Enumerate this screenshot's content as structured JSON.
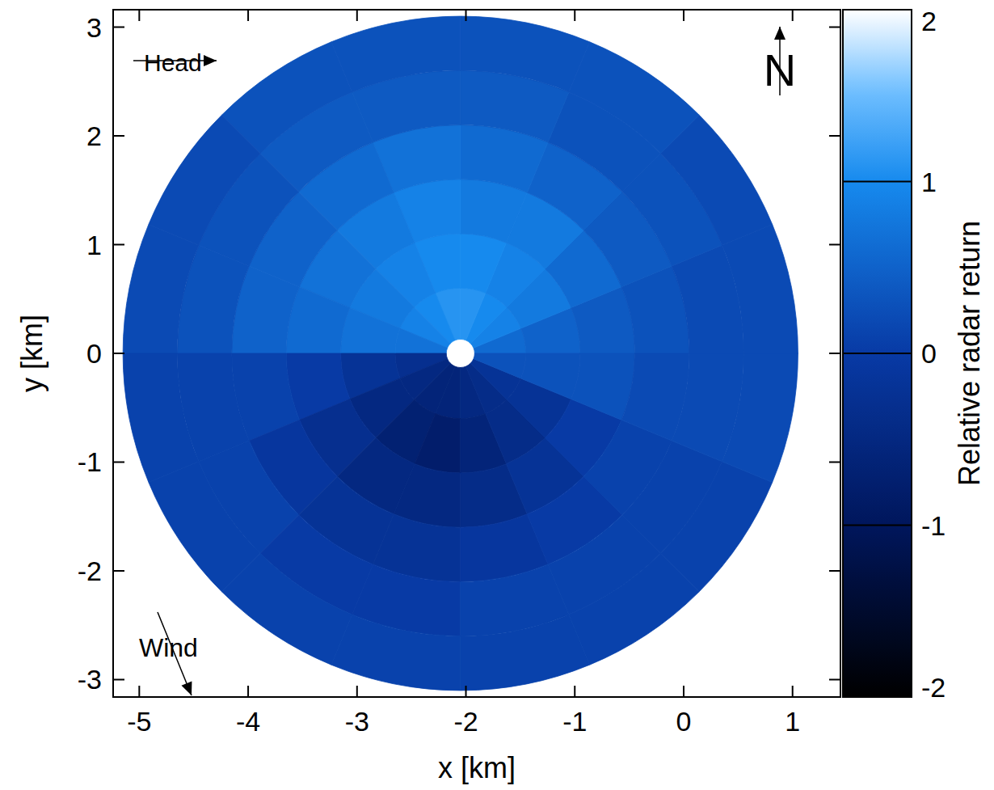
{
  "chart_data": {
    "type": "polar_heatmap",
    "xlabel": "x [km]",
    "ylabel": "y [km]",
    "xlim": [
      -5.24,
      1.44
    ],
    "ylim": [
      -3.16,
      3.16
    ],
    "xticks": [
      -5,
      -4,
      -3,
      -2,
      -1,
      0,
      1
    ],
    "yticks": [
      -3,
      -2,
      -1,
      0,
      1,
      2,
      3
    ],
    "center": [
      -2.05,
      0
    ],
    "radii": [
      0.13,
      0.6,
      1.1,
      1.6,
      2.1,
      2.6,
      3.1
    ],
    "angles": [
      0,
      22.5,
      45,
      67.5,
      90,
      112.5,
      135,
      157.5,
      180,
      202.5,
      225,
      247.5,
      270,
      292.5,
      315,
      337.5,
      360
    ],
    "cells": [
      [
        0.6,
        0.9,
        1.0,
        1.1,
        1.1,
        1.0,
        0.9,
        0.7,
        -0.3,
        -0.5,
        -0.6,
        -0.6,
        -0.5,
        -0.4,
        -0.2,
        0.3
      ],
      [
        0.5,
        0.8,
        0.9,
        1.0,
        1.0,
        0.9,
        0.8,
        0.7,
        -0.2,
        -0.5,
        -0.7,
        -0.8,
        -0.6,
        -0.4,
        -0.2,
        0.3
      ],
      [
        0.4,
        0.6,
        0.8,
        0.8,
        0.9,
        0.8,
        0.7,
        0.6,
        0.0,
        -0.3,
        -0.5,
        -0.5,
        -0.4,
        -0.2,
        0.0,
        0.3
      ],
      [
        0.3,
        0.4,
        0.5,
        0.6,
        0.7,
        0.6,
        0.5,
        0.5,
        0.1,
        -0.1,
        -0.2,
        -0.2,
        -0.1,
        0.0,
        0.1,
        0.2
      ],
      [
        0.2,
        0.3,
        0.3,
        0.4,
        0.4,
        0.4,
        0.3,
        0.3,
        0.1,
        0.1,
        0.0,
        0.0,
        0.1,
        0.1,
        0.1,
        0.2
      ],
      [
        0.2,
        0.2,
        0.3,
        0.3,
        0.3,
        0.3,
        0.2,
        0.2,
        0.1,
        0.1,
        0.1,
        0.1,
        0.1,
        0.1,
        0.1,
        0.2
      ]
    ],
    "colorbar": {
      "label": "Relative radar return",
      "range": [
        -2,
        2
      ],
      "ticks": [
        -2,
        -1,
        0,
        1,
        2
      ]
    },
    "annotations": [
      {
        "text": "Head"
      },
      {
        "text": "Wind"
      },
      {
        "text": "N"
      }
    ]
  }
}
